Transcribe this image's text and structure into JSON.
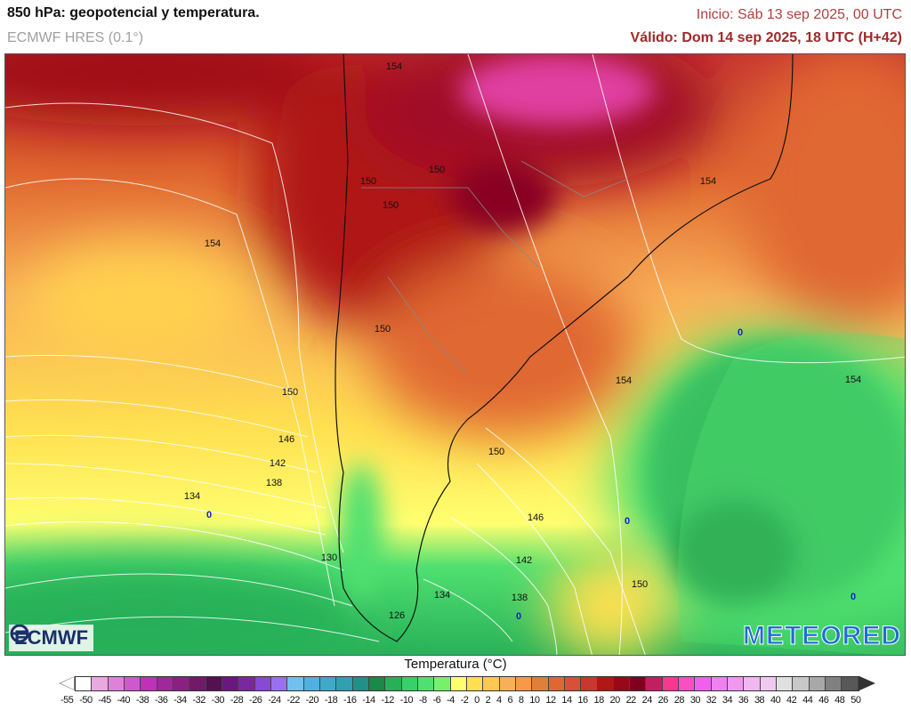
{
  "header": {
    "title": "850 hPa: geopotencial y temperatura.",
    "model": "ECMWF HRES (0.1°)",
    "init": "Inicio: Sáb 13 sep 2025, 00 UTC",
    "valid": "Válido: Dom 14 sep 2025, 18 UTC (H+42)"
  },
  "map": {
    "contour_labels": [
      "154",
      "150",
      "150",
      "150",
      "150",
      "154",
      "154",
      "150",
      "146",
      "142",
      "138",
      "134",
      "130",
      "126",
      "150",
      "154",
      "154",
      "150",
      "146",
      "142",
      "138",
      "134",
      "150"
    ],
    "zero_labels": [
      "0",
      "0",
      "0",
      "0",
      "0"
    ]
  },
  "logos": {
    "left": "ECMWF",
    "right": "METEORED"
  },
  "colorbar": {
    "title": "Temperatura (°C)",
    "ticks": [
      "-55",
      "-50",
      "-45",
      "-40",
      "-38",
      "-36",
      "-34",
      "-32",
      "-30",
      "-28",
      "-26",
      "-24",
      "-22",
      "-20",
      "-18",
      "-16",
      "-14",
      "-12",
      "-10",
      "-8",
      "-6",
      "-4",
      "-2",
      "0",
      "2",
      "4",
      "6",
      "8",
      "10",
      "12",
      "14",
      "16",
      "18",
      "20",
      "22",
      "24",
      "26",
      "28",
      "30",
      "32",
      "34",
      "36",
      "38",
      "40",
      "42",
      "44",
      "46",
      "48",
      "50"
    ],
    "colors": [
      "#ffffff",
      "#e8a8e0",
      "#e080d8",
      "#d058cc",
      "#c030b8",
      "#a02898",
      "#8c2080",
      "#741868",
      "#541050",
      "#6a1880",
      "#7828a0",
      "#8848d8",
      "#9870f0",
      "#70c0f0",
      "#50b0e0",
      "#40a8c8",
      "#30a0b0",
      "#209088",
      "#1a8848",
      "#28b058",
      "#38d068",
      "#50e070",
      "#78f068",
      "#ffff70",
      "#ffe050",
      "#ffc850",
      "#f8b058",
      "#f89848",
      "#e08038",
      "#e06830",
      "#d85038",
      "#c83830",
      "#b01818",
      "#980818",
      "#800020",
      "#c02060",
      "#f83890",
      "#f850c0",
      "#f060f0",
      "#f080f0",
      "#f098f0",
      "#f0b8f0",
      "#f0c8f0",
      "#e0e0e0",
      "#c8c8c8",
      "#a8a8a8",
      "#808080",
      "#585858"
    ]
  }
}
